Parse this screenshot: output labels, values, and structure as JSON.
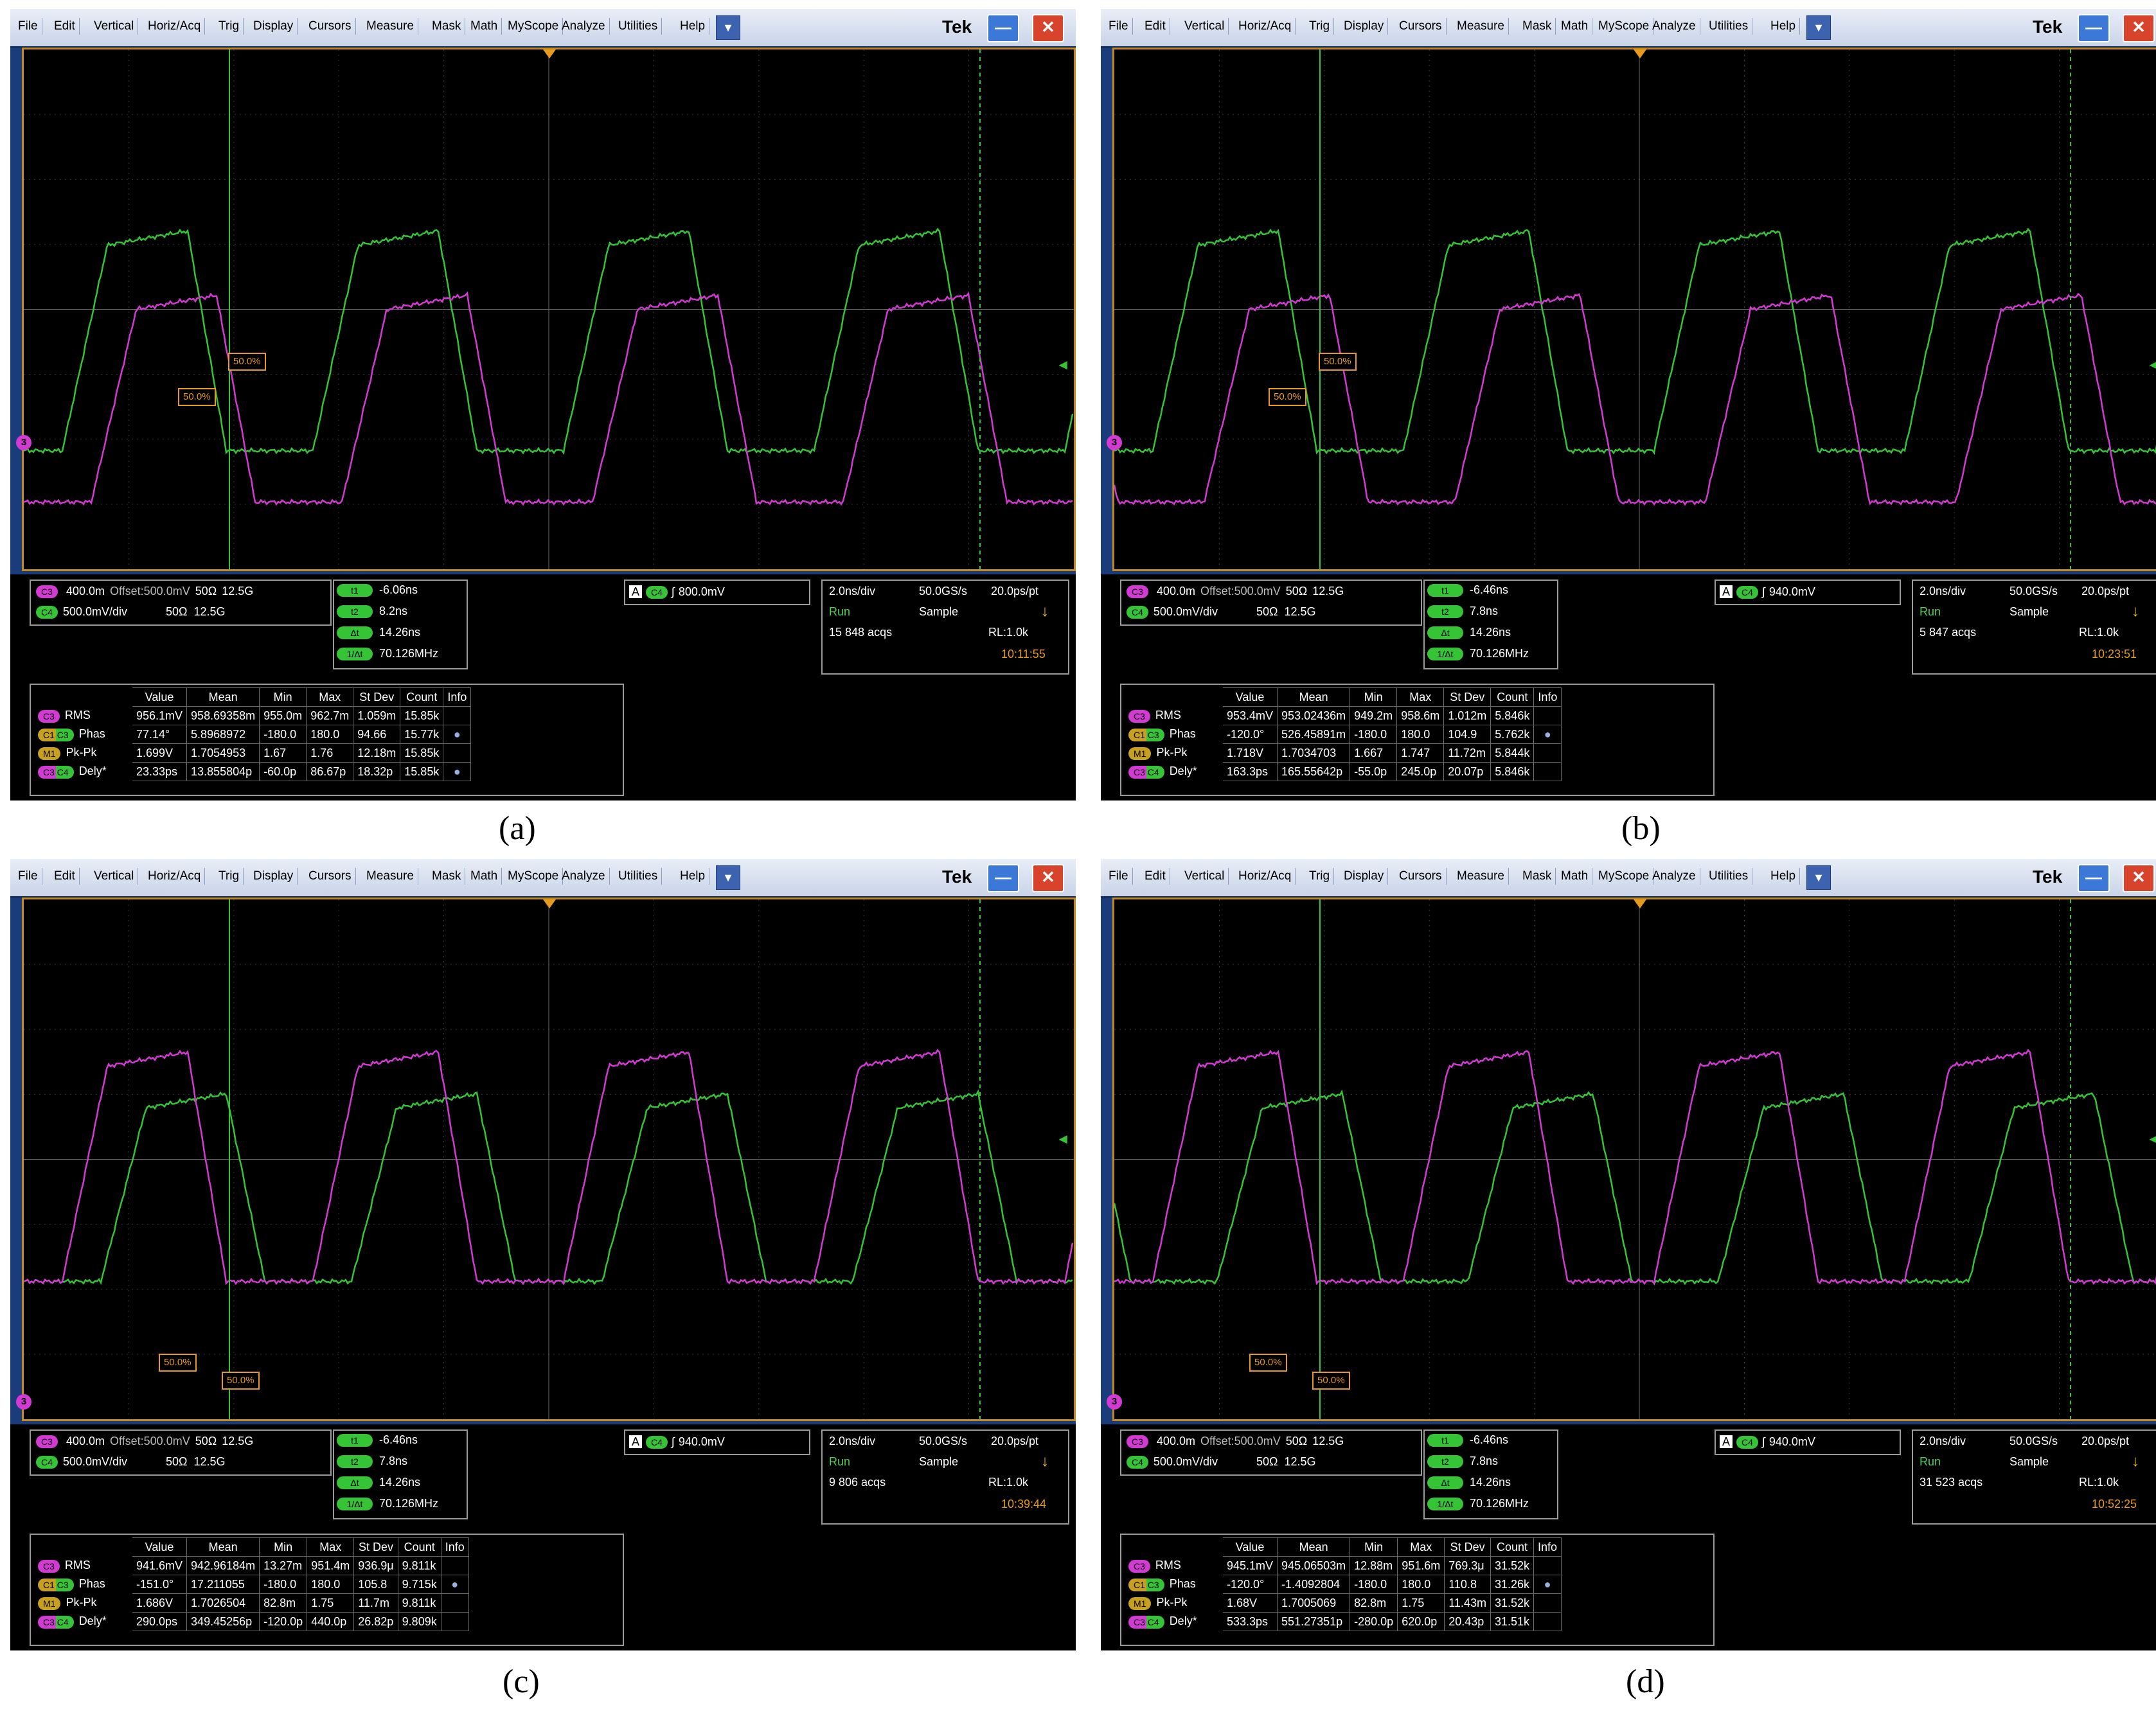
{
  "menu": [
    "File",
    "Edit",
    "Vertical",
    "Horiz/Acq",
    "Trig",
    "Display",
    "Cursors",
    "Measure",
    "Mask",
    "Math",
    "MyScope",
    "Analyze",
    "Utilities",
    "Help"
  ],
  "brand": "Tek",
  "icons": {
    "dropdown": "chevron-down-icon",
    "minimize": "minimize-icon",
    "close": "close-icon"
  },
  "colors": {
    "ch3": "#d33ad3",
    "ch4": "#35c435",
    "screen_border": "#c58a1c",
    "cursor": "#35c435",
    "marker": "#e89a1e"
  },
  "table_headers": [
    "Value",
    "Mean",
    "Min",
    "Max",
    "St Dev",
    "Count",
    "Info"
  ],
  "row_names": [
    "RMS",
    "Phas",
    "Pk-Pk",
    "Dely*"
  ],
  "row_chips": [
    "C3",
    "C1 C3",
    "M1",
    "C3 C4"
  ],
  "panels": [
    {
      "caption": "(a)",
      "ch3": {
        "chip": "C3",
        "scale": "400.0m",
        "offset": "Offset:500.0mV",
        "imp": "50Ω",
        "bw": "12.5G"
      },
      "ch4": {
        "chip": "C4",
        "scale": "500.0mV/div",
        "imp": "50Ω",
        "bw": "12.5G"
      },
      "cursors": {
        "t1": "-6.06ns",
        "t2": "8.2ns",
        "dt": "14.26ns",
        "inv": "70.126MHz",
        "labels": [
          "t1",
          "t2",
          "Δt",
          "1/Δt"
        ]
      },
      "trigger": {
        "mode": "A",
        "chip": "C4",
        "level": "800.0mV"
      },
      "acq": {
        "timebase": "2.0ns/div",
        "rate": "50.0GS/s",
        "res": "20.0ps/pt",
        "state": "Run",
        "mode": "Sample",
        "acqs": "15 848 acqs",
        "rl": "RL:1.0k",
        "time": "10:11:55"
      },
      "markers": {
        "m1": "50.0%",
        "m2": "50.0%"
      },
      "rows": [
        [
          "956.1mV",
          "958.69358m",
          "955.0m",
          "962.7m",
          "1.059m",
          "15.85k",
          ""
        ],
        [
          "77.14°",
          "5.8968972",
          "-180.0",
          "180.0",
          "94.66",
          "15.77k",
          "●"
        ],
        [
          "1.699V",
          "1.7054953",
          "1.67",
          "1.76",
          "12.18m",
          "15.85k",
          ""
        ],
        [
          "23.33ps",
          "13.855804p",
          "-60.0p",
          "86.67p",
          "18.32p",
          "15.85k",
          "●"
        ]
      ]
    },
    {
      "caption": "(b)",
      "ch3": {
        "chip": "C3",
        "scale": "400.0m",
        "offset": "Offset:500.0mV",
        "imp": "50Ω",
        "bw": "12.5G"
      },
      "ch4": {
        "chip": "C4",
        "scale": "500.0mV/div",
        "imp": "50Ω",
        "bw": "12.5G"
      },
      "cursors": {
        "t1": "-6.46ns",
        "t2": "7.8ns",
        "dt": "14.26ns",
        "inv": "70.126MHz",
        "labels": [
          "t1",
          "t2",
          "Δt",
          "1/Δt"
        ]
      },
      "trigger": {
        "mode": "A",
        "chip": "C4",
        "level": "940.0mV"
      },
      "acq": {
        "timebase": "2.0ns/div",
        "rate": "50.0GS/s",
        "res": "20.0ps/pt",
        "state": "Run",
        "mode": "Sample",
        "acqs": "5 847 acqs",
        "rl": "RL:1.0k",
        "time": "10:23:51"
      },
      "markers": {
        "m1": "50.0%",
        "m2": "50.0%"
      },
      "rows": [
        [
          "953.4mV",
          "953.02436m",
          "949.2m",
          "958.6m",
          "1.012m",
          "5.846k",
          ""
        ],
        [
          "-120.0°",
          "526.45891m",
          "-180.0",
          "180.0",
          "104.9",
          "5.762k",
          "●"
        ],
        [
          "1.718V",
          "1.7034703",
          "1.667",
          "1.747",
          "11.72m",
          "5.844k",
          ""
        ],
        [
          "163.3ps",
          "165.55642p",
          "-55.0p",
          "245.0p",
          "20.07p",
          "5.846k",
          ""
        ]
      ]
    },
    {
      "caption": "(c)",
      "ch3": {
        "chip": "C3",
        "scale": "400.0m",
        "offset": "Offset:500.0mV",
        "imp": "50Ω",
        "bw": "12.5G"
      },
      "ch4": {
        "chip": "C4",
        "scale": "500.0mV/div",
        "imp": "50Ω",
        "bw": "12.5G"
      },
      "cursors": {
        "t1": "-6.46ns",
        "t2": "7.8ns",
        "dt": "14.26ns",
        "inv": "70.126MHz",
        "labels": [
          "t1",
          "t2",
          "Δt",
          "1/Δt"
        ]
      },
      "trigger": {
        "mode": "A",
        "chip": "C4",
        "level": "940.0mV"
      },
      "acq": {
        "timebase": "2.0ns/div",
        "rate": "50.0GS/s",
        "res": "20.0ps/pt",
        "state": "Run",
        "mode": "Sample",
        "acqs": "9 806 acqs",
        "rl": "RL:1.0k",
        "time": "10:39:44"
      },
      "markers": {
        "m1": "50.0%",
        "m2": "50.0%"
      },
      "rows": [
        [
          "941.6mV",
          "942.96184m",
          "13.27m",
          "951.4m",
          "936.9μ",
          "9.811k",
          ""
        ],
        [
          "-151.0°",
          "17.211055",
          "-180.0",
          "180.0",
          "105.8",
          "9.715k",
          "●"
        ],
        [
          "1.686V",
          "1.7026504",
          "82.8m",
          "1.75",
          "11.7m",
          "9.811k",
          ""
        ],
        [
          "290.0ps",
          "349.45256p",
          "-120.0p",
          "440.0p",
          "26.82p",
          "9.809k",
          ""
        ]
      ]
    },
    {
      "caption": "(d)",
      "ch3": {
        "chip": "C3",
        "scale": "400.0m",
        "offset": "Offset:500.0mV",
        "imp": "50Ω",
        "bw": "12.5G"
      },
      "ch4": {
        "chip": "C4",
        "scale": "500.0mV/div",
        "imp": "50Ω",
        "bw": "12.5G"
      },
      "cursors": {
        "t1": "-6.46ns",
        "t2": "7.8ns",
        "dt": "14.26ns",
        "inv": "70.126MHz",
        "labels": [
          "t1",
          "t2",
          "Δt",
          "1/Δt"
        ]
      },
      "trigger": {
        "mode": "A",
        "chip": "C4",
        "level": "940.0mV"
      },
      "acq": {
        "timebase": "2.0ns/div",
        "rate": "50.0GS/s",
        "res": "20.0ps/pt",
        "state": "Run",
        "mode": "Sample",
        "acqs": "31 523 acqs",
        "rl": "RL:1.0k",
        "time": "10:52:25"
      },
      "markers": {
        "m1": "50.0%",
        "m2": "50.0%"
      },
      "rows": [
        [
          "945.1mV",
          "945.06503m",
          "12.88m",
          "951.6m",
          "769.3μ",
          "31.52k",
          ""
        ],
        [
          "-120.0°",
          "-1.4092804",
          "-180.0",
          "180.0",
          "110.8",
          "31.26k",
          "●"
        ],
        [
          "1.68V",
          "1.7005069",
          "82.8m",
          "1.75",
          "11.43m",
          "31.52k",
          ""
        ],
        [
          "533.3ps",
          "551.27351p",
          "-280.0p",
          "620.0p",
          "20.43p",
          "31.51k",
          ""
        ]
      ]
    }
  ]
}
